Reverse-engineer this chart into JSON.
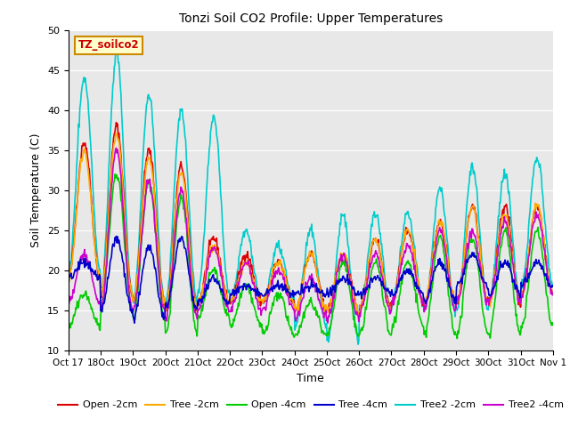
{
  "title": "Tonzi Soil CO2 Profile: Upper Temperatures",
  "xlabel": "Time",
  "ylabel": "Soil Temperature (C)",
  "ylim": [
    10,
    50
  ],
  "yticks": [
    10,
    15,
    20,
    25,
    30,
    35,
    40,
    45,
    50
  ],
  "label_box_text": "TZ_soilco2",
  "background_color": "#e8e8e8",
  "series": {
    "Open -2cm": {
      "color": "#dd0000",
      "lw": 1.2
    },
    "Tree -2cm": {
      "color": "#ffaa00",
      "lw": 1.2
    },
    "Open -4cm": {
      "color": "#00cc00",
      "lw": 1.2
    },
    "Tree -4cm": {
      "color": "#0000cc",
      "lw": 1.2
    },
    "Tree2 -2cm": {
      "color": "#00cccc",
      "lw": 1.2
    },
    "Tree2 -4cm": {
      "color": "#cc00cc",
      "lw": 1.2
    }
  },
  "xtick_labels": [
    "Oct 17",
    "18Oct",
    "19Oct",
    "20Oct",
    "21Oct",
    "22Oct",
    "23Oct",
    "24Oct",
    "25Oct",
    "26Oct",
    "27Oct",
    "28Oct",
    "29Oct",
    "30Oct",
    "31Oct",
    "Nov 1"
  ],
  "n_days": 15,
  "pts_per_day": 48
}
